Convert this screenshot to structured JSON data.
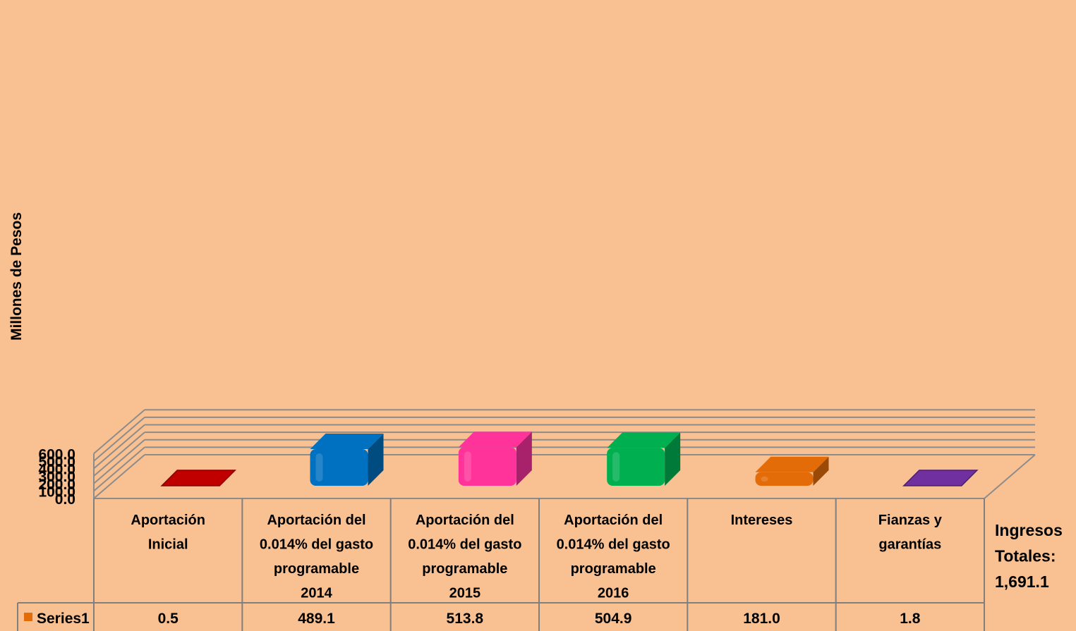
{
  "chart_data": {
    "type": "bar",
    "ylabel": "Millones de Pesos",
    "ylim": [
      0,
      600
    ],
    "yticks": [
      "0.0",
      "100.0",
      "200.0",
      "300.0",
      "400.0",
      "500.0",
      "600.0"
    ],
    "grid": true,
    "categories": [
      [
        "Aportación",
        "Inicial"
      ],
      [
        "Aportación del",
        "0.014% del gasto",
        "programable",
        "2014"
      ],
      [
        "Aportación del",
        "0.014% del gasto",
        "programable",
        "2015"
      ],
      [
        "Aportación del",
        "0.014% del gasto",
        "programable",
        "2016"
      ],
      [
        "Intereses"
      ],
      [
        "Fianzas y",
        "garantías"
      ]
    ],
    "series": [
      {
        "name": "Series1",
        "values": [
          0.5,
          489.1,
          513.8,
          504.9,
          181.0,
          1.8
        ],
        "labels": [
          "0.5",
          "489.1",
          "513.8",
          "504.9",
          "181.0",
          "1.8"
        ]
      }
    ],
    "bar_colors": [
      "#C00000",
      "#0070C0",
      "#FF3399",
      "#00B050",
      "#E36C09",
      "#7030A0"
    ],
    "bar_side_colors": [
      "#8B0000",
      "#004C80",
      "#A8226B",
      "#007A38",
      "#9A4A06",
      "#4B1F6E"
    ],
    "legend_marker_color": "#E36C09",
    "annotation": [
      "Ingresos",
      "Totales:",
      "1,691.1"
    ]
  }
}
